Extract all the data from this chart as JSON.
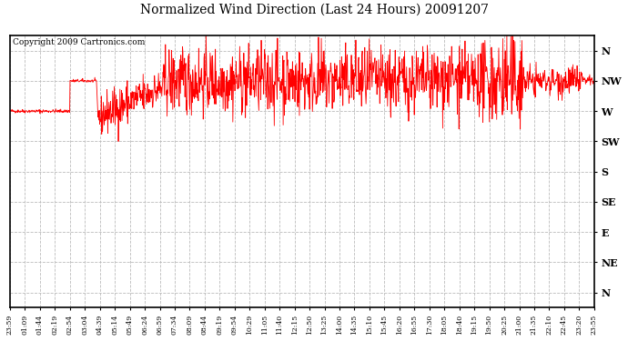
{
  "title": "Normalized Wind Direction (Last 24 Hours) 20091207",
  "copyright_text": "Copyright 2009 Cartronics.com",
  "line_color": "#ff0000",
  "bg_color": "#ffffff",
  "grid_color": "#bbbbbb",
  "ytick_labels": [
    "N",
    "NW",
    "W",
    "SW",
    "S",
    "SE",
    "E",
    "NE",
    "N"
  ],
  "ytick_values": [
    8,
    7,
    6,
    5,
    4,
    3,
    2,
    1,
    0
  ],
  "xtick_labels": [
    "23:59",
    "01:09",
    "01:44",
    "02:19",
    "02:54",
    "03:04",
    "04:39",
    "05:14",
    "05:49",
    "06:24",
    "06:59",
    "07:34",
    "08:09",
    "08:44",
    "09:19",
    "09:54",
    "10:29",
    "11:05",
    "11:40",
    "12:15",
    "12:50",
    "13:25",
    "14:00",
    "14:35",
    "15:10",
    "15:45",
    "16:20",
    "16:55",
    "17:30",
    "18:05",
    "18:40",
    "19:15",
    "19:50",
    "20:25",
    "21:00",
    "21:35",
    "22:10",
    "22:45",
    "23:20",
    "23:55"
  ],
  "num_points": 1440,
  "seed": 42,
  "ylim_min": -0.5,
  "ylim_max": 8.5
}
